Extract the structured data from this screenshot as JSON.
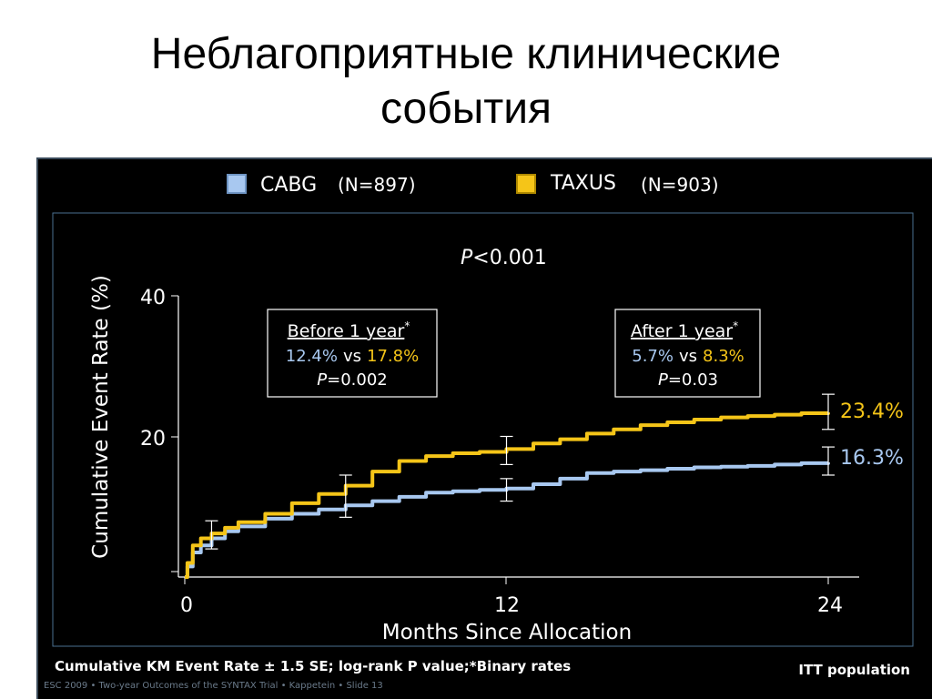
{
  "slide": {
    "title_line1": "Неблагоприятные клинические",
    "title_line2": "события"
  },
  "colors": {
    "cabg": "#a8c8f0",
    "taxus": "#f5c518",
    "text": "#ffffff",
    "frame": "#4a7090"
  },
  "chart_data": {
    "type": "line",
    "xlabel": "Months Since Allocation",
    "ylabel": "Cumulative Event Rate (%)",
    "xlim": [
      0,
      24
    ],
    "ylim": [
      0,
      40
    ],
    "x_ticks": [
      "0",
      "12",
      "24"
    ],
    "y_ticks": [
      "20",
      "40"
    ],
    "pvalue": "<0.001",
    "legend": {
      "cabg": {
        "name": "CABG",
        "n": "(N=897)"
      },
      "taxus": {
        "name": "TAXUS",
        "n": "(N=903)"
      }
    },
    "series": [
      {
        "name": "CABG",
        "color": "#a8c8f0",
        "x": [
          0,
          0.1,
          0.3,
          0.6,
          1.0,
          1.5,
          2,
          3,
          4,
          5,
          6,
          7,
          8,
          9,
          10,
          11,
          12,
          13,
          14,
          15,
          16,
          17,
          18,
          19,
          20,
          21,
          22,
          23,
          24
        ],
        "y": [
          0,
          1.5,
          3.5,
          4.5,
          5.5,
          6.5,
          7.2,
          8.3,
          9.0,
          9.6,
          10.2,
          10.8,
          11.4,
          12.0,
          12.2,
          12.4,
          12.6,
          13.2,
          14.0,
          14.8,
          15.0,
          15.2,
          15.4,
          15.6,
          15.7,
          15.8,
          16.0,
          16.2,
          16.3
        ]
      },
      {
        "name": "TAXUS",
        "color": "#f5c518",
        "x": [
          0,
          0.1,
          0.3,
          0.6,
          1.0,
          1.5,
          2,
          3,
          4,
          5,
          6,
          7,
          8,
          9,
          10,
          11,
          12,
          13,
          14,
          15,
          16,
          17,
          18,
          19,
          20,
          21,
          22,
          23,
          24
        ],
        "y": [
          0,
          2.0,
          4.5,
          5.5,
          6.2,
          7.0,
          7.8,
          9.0,
          10.5,
          11.8,
          13.0,
          15.0,
          16.5,
          17.2,
          17.6,
          17.8,
          18.2,
          19.0,
          19.6,
          20.4,
          21.0,
          21.6,
          22.0,
          22.4,
          22.7,
          22.9,
          23.1,
          23.3,
          23.4
        ]
      }
    ],
    "error_bars": [
      {
        "x": 1,
        "low": 4.0,
        "high": 8.0
      },
      {
        "x": 6,
        "low": 8.5,
        "high": 14.5
      },
      {
        "x": 12,
        "low": 10.8,
        "high": 14.0
      },
      {
        "x": 12,
        "low": 16.0,
        "high": 20.0
      },
      {
        "x": 24,
        "low": 14.5,
        "high": 18.5
      },
      {
        "x": 24,
        "low": 21.0,
        "high": 26.0
      }
    ],
    "end_labels": {
      "taxus": "23.4%",
      "cabg": "16.3%"
    },
    "boxes": [
      {
        "title": "Before 1 year",
        "star": "*",
        "cabg": "12.4%",
        "vs": "vs",
        "taxus": "17.8%",
        "p": "=0.002"
      },
      {
        "title": "After 1 year",
        "star": "*",
        "cabg": "5.7%",
        "vs": "vs",
        "taxus": "8.3%",
        "p": "=0.03"
      }
    ],
    "p_symbol": "P",
    "footnote": "Cumulative KM Event Rate ± 1.5 SE; log-rank P value;*Binary rates",
    "population": "ITT population",
    "source": "ESC 2009 • Two-year Outcomes of the SYNTAX Trial • Kappetein • Slide 13"
  }
}
